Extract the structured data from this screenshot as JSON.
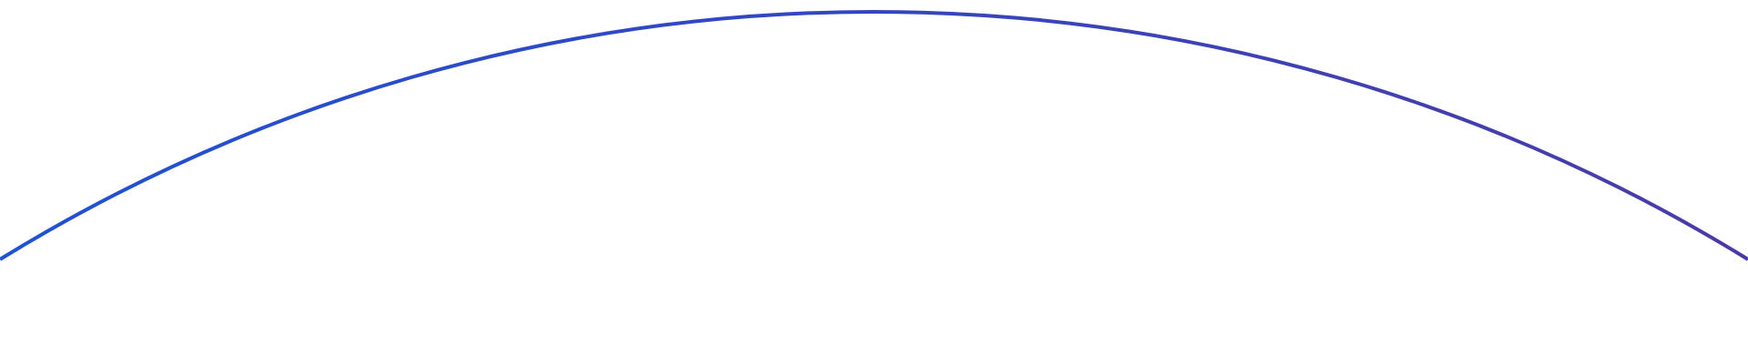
{
  "background_color": "#ffffff",
  "arc": {
    "gradient_start_color": "#1f52d4",
    "gradient_end_color": "#4a3aa8"
  }
}
